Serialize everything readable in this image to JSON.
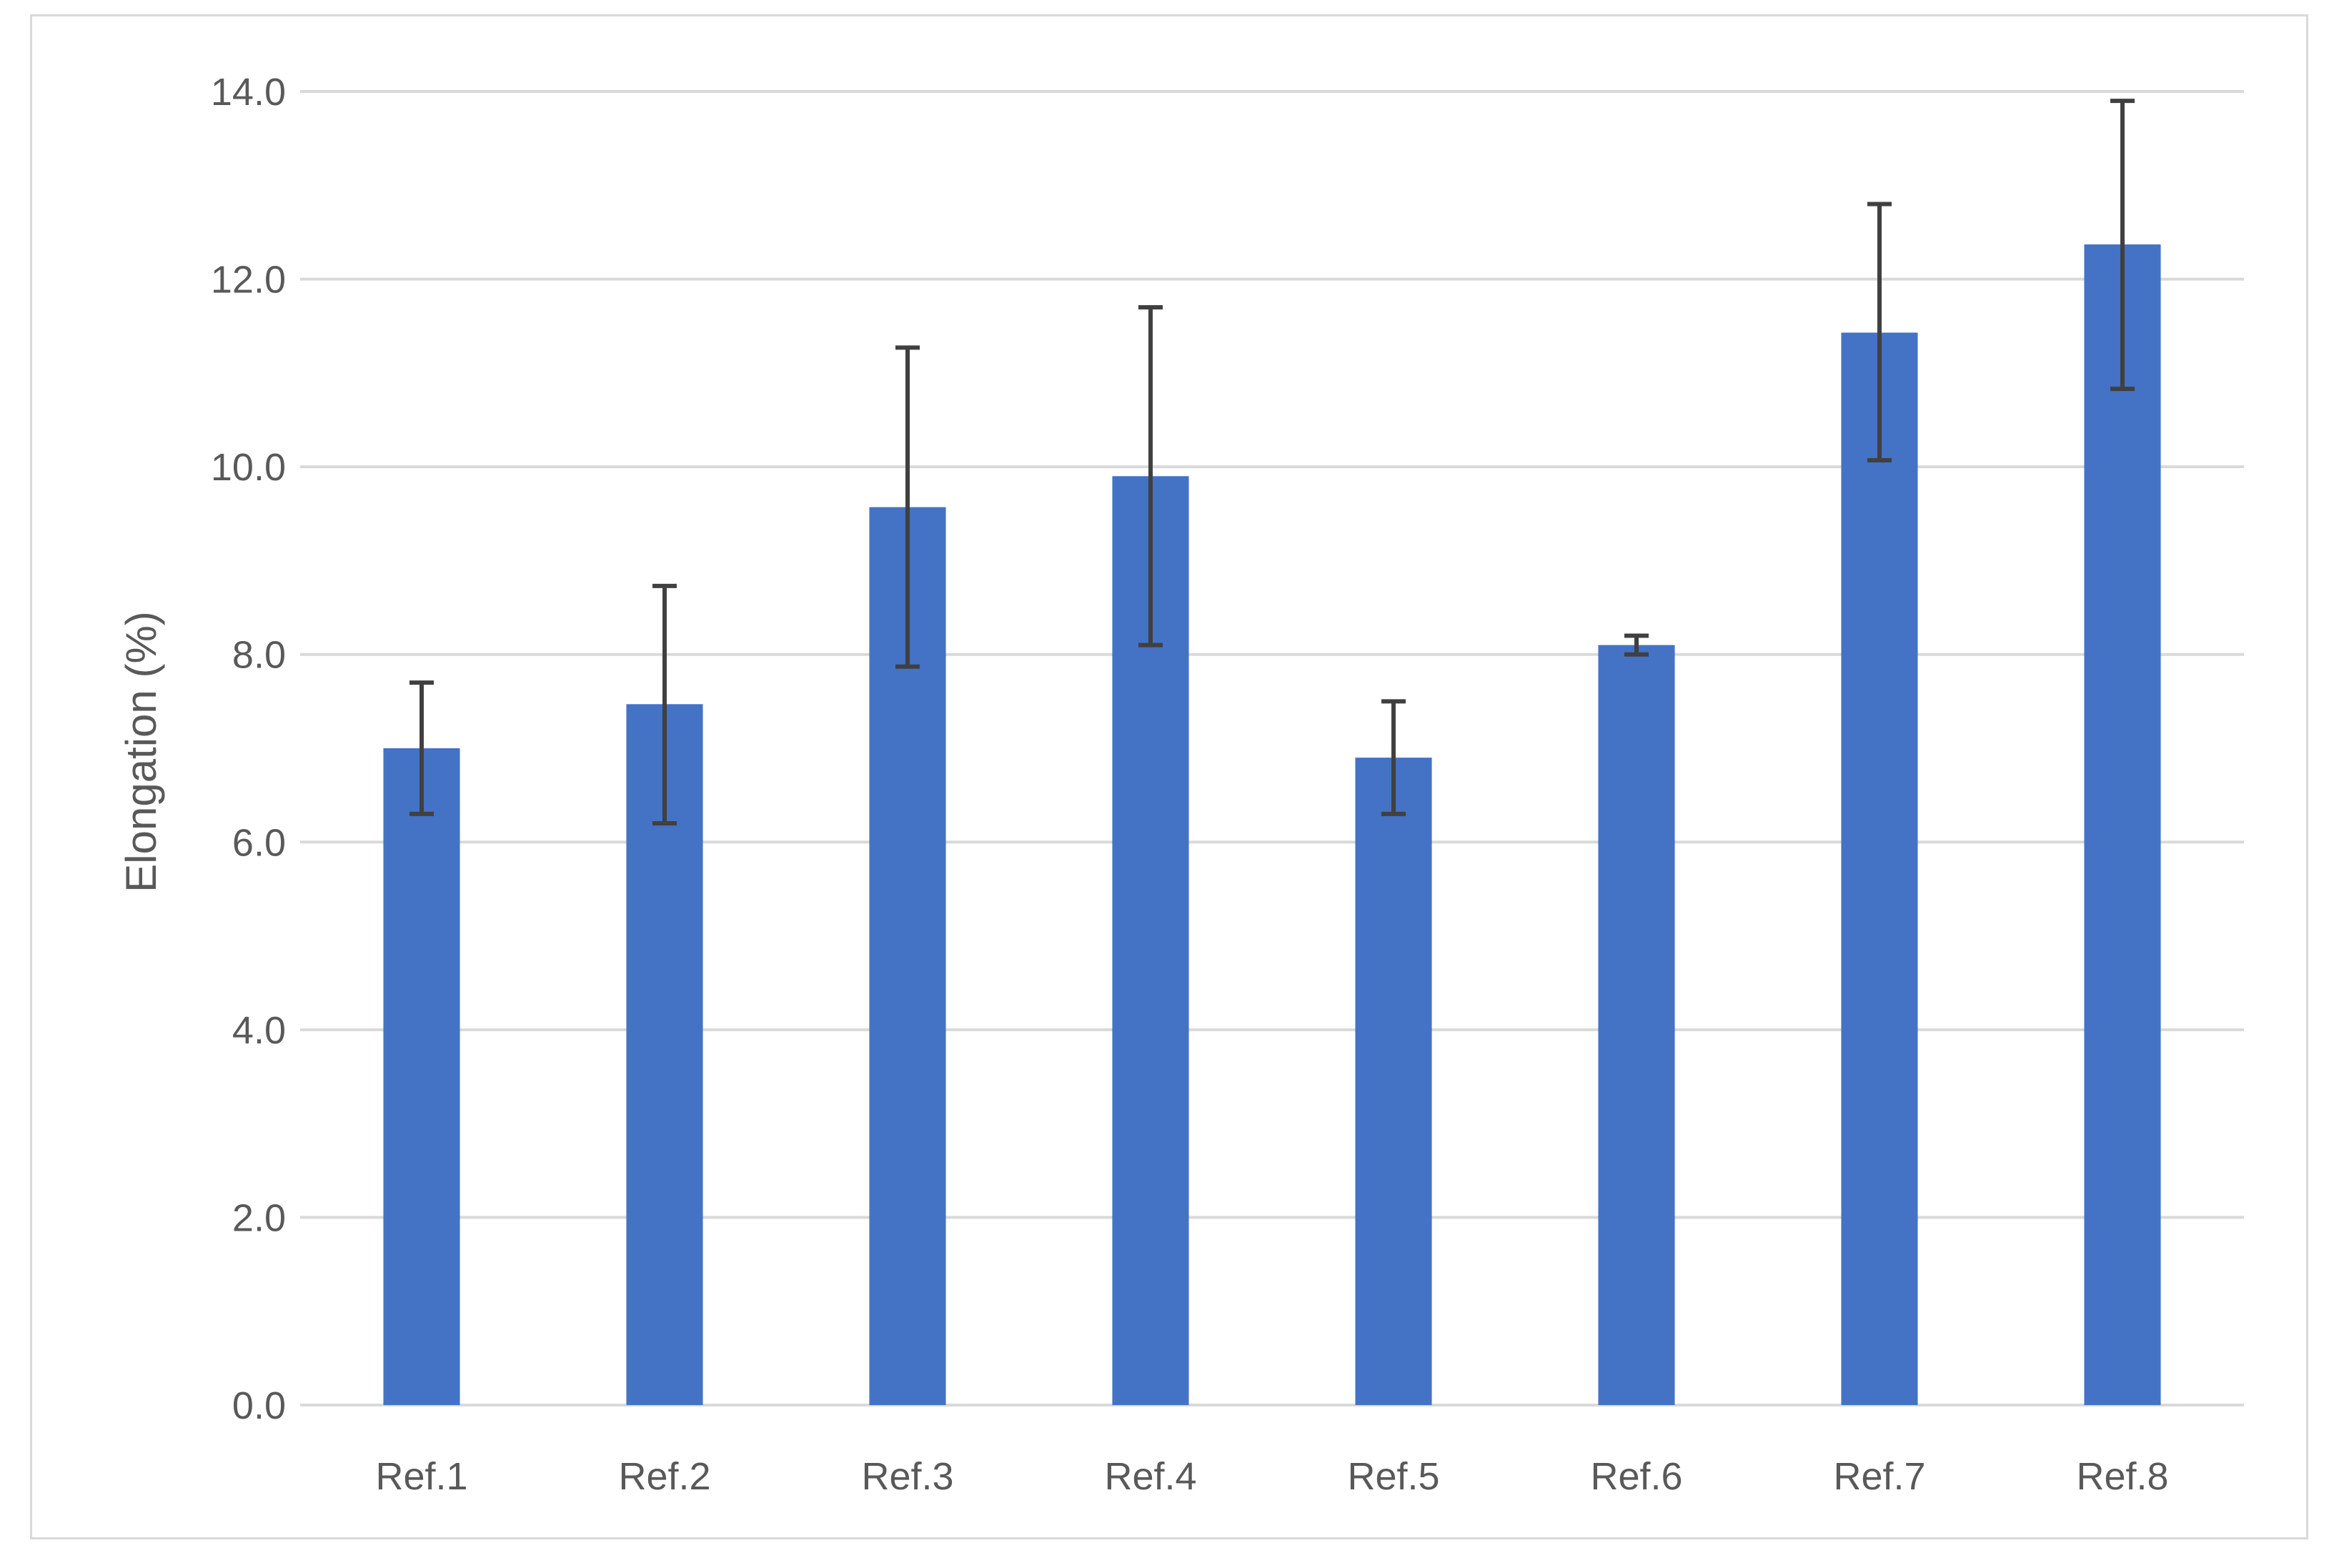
{
  "chart_data": {
    "type": "bar",
    "title": "",
    "xlabel": "",
    "ylabel": "Elongation (%)",
    "ylim": [
      0,
      14
    ],
    "y_ticks": [
      "0.0",
      "2.0",
      "4.0",
      "6.0",
      "8.0",
      "10.0",
      "12.0",
      "14.0"
    ],
    "grid": true,
    "legend": "none",
    "categories": [
      "Ref.1",
      "Ref.2",
      "Ref.3",
      "Ref.4",
      "Ref.5",
      "Ref.6",
      "Ref.7",
      "Ref.8"
    ],
    "values": [
      7.0,
      7.47,
      9.57,
      9.9,
      6.9,
      8.1,
      11.43,
      12.37
    ],
    "error_upper": [
      7.7,
      8.73,
      11.27,
      11.7,
      7.5,
      8.2,
      12.8,
      13.9
    ],
    "error_lower": [
      6.3,
      6.2,
      7.87,
      8.1,
      6.3,
      8.0,
      10.07,
      10.83
    ],
    "colors": {
      "bar": "#4472c4",
      "error_bar": "#404040",
      "grid": "#d9d9d9",
      "text": "#595959"
    }
  }
}
